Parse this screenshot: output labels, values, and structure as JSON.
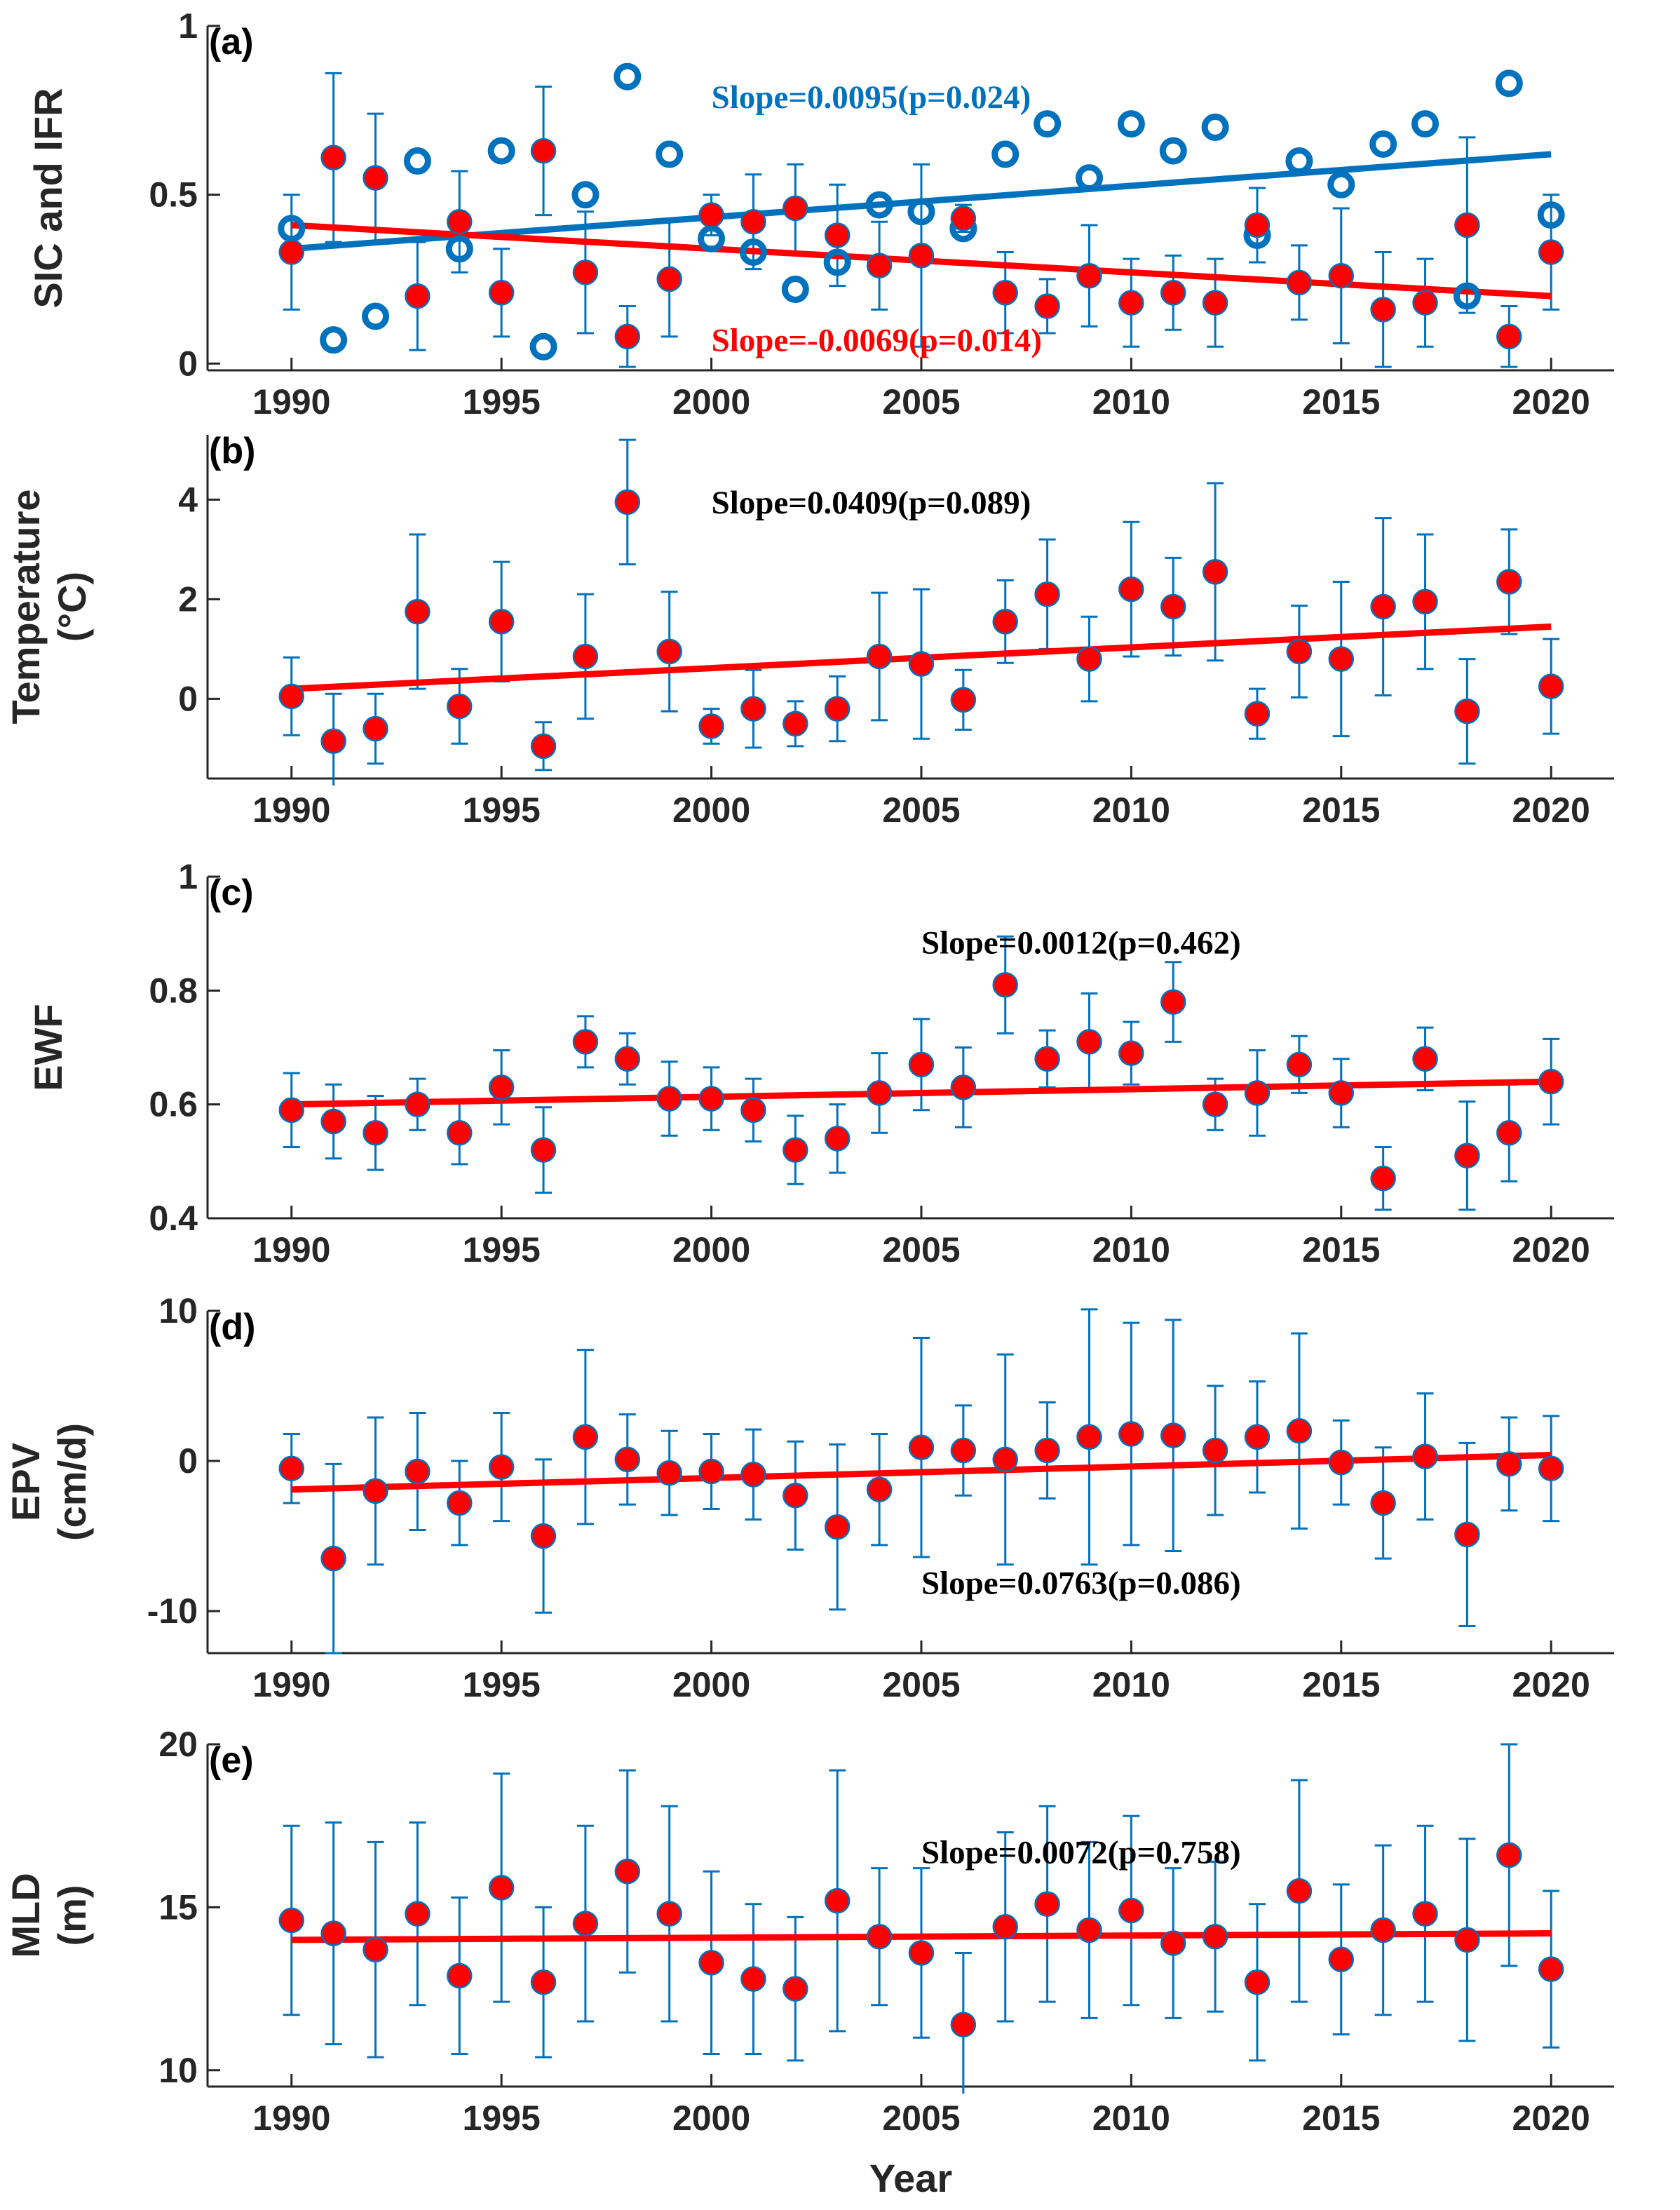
{
  "chart_data": [
    {
      "type": "scatter",
      "panel_label": "(a)",
      "ylabel": [
        "SIC and IFR"
      ],
      "xlabel": "",
      "xlim": [
        1988,
        2021.5
      ],
      "ylim": [
        -0.02,
        1.0
      ],
      "yticks": [
        0,
        0.5,
        1
      ],
      "ytick_labels": [
        "0",
        "0.5",
        "1"
      ],
      "xticks": [
        1990,
        1995,
        2000,
        2005,
        2010,
        2015,
        2020
      ],
      "xtick_labels": [
        "1990",
        "1995",
        "2000",
        "2005",
        "2010",
        "2015",
        "2020"
      ],
      "x": [
        1990,
        1991,
        1992,
        1993,
        1994,
        1995,
        1996,
        1997,
        1998,
        1999,
        2000,
        2001,
        2002,
        2003,
        2004,
        2005,
        2006,
        2007,
        2008,
        2009,
        2010,
        2011,
        2012,
        2013,
        2014,
        2015,
        2016,
        2017,
        2018,
        2019,
        2020
      ],
      "series": [
        {
          "name": "SIC",
          "marker": "open-circle",
          "color": "#0072BD",
          "values": [
            0.4,
            0.07,
            0.14,
            0.6,
            0.34,
            0.63,
            0.05,
            0.5,
            0.85,
            0.62,
            0.37,
            0.33,
            0.22,
            0.3,
            0.47,
            0.45,
            0.4,
            0.62,
            0.71,
            0.55,
            0.71,
            0.63,
            0.7,
            0.38,
            0.6,
            0.53,
            0.65,
            0.71,
            0.2,
            0.83,
            0.44
          ],
          "trend": [
            0.34,
            0.62
          ],
          "trend_color": "#0072BD"
        },
        {
          "name": "IFR",
          "marker": "filled-circle",
          "color": "#FF0000",
          "values": [
            0.33,
            0.61,
            0.55,
            0.2,
            0.42,
            0.21,
            0.63,
            0.27,
            0.08,
            0.25,
            0.44,
            0.42,
            0.46,
            0.38,
            0.29,
            0.32,
            0.43,
            0.21,
            0.17,
            0.26,
            0.18,
            0.21,
            0.18,
            0.41,
            0.24,
            0.26,
            0.16,
            0.18,
            0.41,
            0.08,
            0.33
          ],
          "errors": [
            0.17,
            0.25,
            0.19,
            0.16,
            0.15,
            0.13,
            0.19,
            0.18,
            0.09,
            0.17,
            0.06,
            0.14,
            0.13,
            0.15,
            0.13,
            0.27,
            0.04,
            0.12,
            0.08,
            0.15,
            0.13,
            0.11,
            0.13,
            0.11,
            0.11,
            0.2,
            0.17,
            0.13,
            0.26,
            0.09,
            0.17
          ],
          "error_color": "#0072BD",
          "trend": [
            0.41,
            0.2
          ],
          "trend_color": "#FF0000"
        }
      ],
      "annotations": [
        {
          "text": "Slope=0.0095(p=0.024)",
          "color": "#0072BD",
          "x": 2000,
          "y": 0.79
        },
        {
          "text": "Slope=-0.0069(p=0.014)",
          "color": "#FF0000",
          "x": 2000,
          "y": 0.07
        }
      ]
    },
    {
      "type": "scatter",
      "panel_label": "(b)",
      "ylabel": [
        "Temperature",
        "(°C)"
      ],
      "xlabel": "",
      "xlim": [
        1988,
        2021.5
      ],
      "ylim": [
        -1.6,
        5.3
      ],
      "yticks": [
        0,
        2,
        4
      ],
      "ytick_labels": [
        "0",
        "2",
        "4"
      ],
      "xticks": [
        1990,
        1995,
        2000,
        2005,
        2010,
        2015,
        2020
      ],
      "xtick_labels": [
        "1990",
        "1995",
        "2000",
        "2005",
        "2010",
        "2015",
        "2020"
      ],
      "x": [
        1990,
        1991,
        1992,
        1993,
        1994,
        1995,
        1996,
        1997,
        1998,
        1999,
        2000,
        2001,
        2002,
        2003,
        2004,
        2005,
        2006,
        2007,
        2008,
        2009,
        2010,
        2011,
        2012,
        2013,
        2014,
        2015,
        2016,
        2017,
        2018,
        2019,
        2020
      ],
      "series": [
        {
          "name": "Temperature",
          "marker": "filled-circle",
          "color": "#FF0000",
          "values": [
            0.05,
            -0.85,
            -0.6,
            1.75,
            -0.15,
            1.55,
            -0.95,
            0.85,
            3.95,
            0.95,
            -0.55,
            -0.2,
            -0.5,
            -0.2,
            0.85,
            0.7,
            -0.02,
            1.55,
            2.1,
            0.8,
            2.2,
            1.85,
            2.55,
            -0.3,
            0.95,
            0.8,
            1.85,
            1.95,
            -0.25,
            2.35,
            0.25
          ],
          "errors": [
            0.78,
            0.95,
            0.7,
            1.55,
            0.75,
            1.2,
            0.48,
            1.25,
            1.25,
            1.2,
            0.35,
            0.78,
            0.45,
            0.65,
            1.28,
            1.5,
            0.6,
            0.83,
            1.1,
            0.85,
            1.35,
            0.98,
            1.78,
            0.5,
            0.92,
            1.55,
            1.78,
            1.35,
            1.05,
            1.05,
            0.95
          ],
          "error_color": "#0072BD",
          "trend": [
            0.2,
            1.45
          ],
          "trend_color": "#FF0000"
        }
      ],
      "annotations": [
        {
          "text": "Slope=0.0409(p=0.089)",
          "color": "#000000",
          "x": 2000,
          "y": 3.95
        }
      ]
    },
    {
      "type": "scatter",
      "panel_label": "(c)",
      "ylabel": [
        "EWF"
      ],
      "xlabel": "",
      "xlim": [
        1988,
        2021.5
      ],
      "ylim": [
        0.4,
        1.0
      ],
      "yticks": [
        0.4,
        0.6,
        0.8,
        1
      ],
      "ytick_labels": [
        "0.4",
        "0.6",
        "0.8",
        "1"
      ],
      "xticks": [
        1990,
        1995,
        2000,
        2005,
        2010,
        2015,
        2020
      ],
      "xtick_labels": [
        "1990",
        "1995",
        "2000",
        "2005",
        "2010",
        "2015",
        "2020"
      ],
      "x": [
        1990,
        1991,
        1992,
        1993,
        1994,
        1995,
        1996,
        1997,
        1998,
        1999,
        2000,
        2001,
        2002,
        2003,
        2004,
        2005,
        2006,
        2007,
        2008,
        2009,
        2010,
        2011,
        2012,
        2013,
        2014,
        2015,
        2016,
        2017,
        2018,
        2019,
        2020
      ],
      "series": [
        {
          "name": "EWF",
          "marker": "filled-circle",
          "color": "#FF0000",
          "values": [
            0.59,
            0.57,
            0.55,
            0.6,
            0.55,
            0.63,
            0.52,
            0.71,
            0.68,
            0.61,
            0.61,
            0.59,
            0.52,
            0.54,
            0.62,
            0.67,
            0.63,
            0.81,
            0.68,
            0.71,
            0.69,
            0.78,
            0.6,
            0.62,
            0.67,
            0.62,
            0.47,
            0.68,
            0.51,
            0.55,
            0.64
          ],
          "errors": [
            0.065,
            0.065,
            0.065,
            0.045,
            0.055,
            0.065,
            0.075,
            0.045,
            0.045,
            0.065,
            0.055,
            0.055,
            0.06,
            0.06,
            0.07,
            0.08,
            0.07,
            0.085,
            0.05,
            0.085,
            0.055,
            0.07,
            0.045,
            0.075,
            0.05,
            0.06,
            0.055,
            0.055,
            0.095,
            0.085,
            0.075
          ],
          "error_color": "#0072BD",
          "trend": [
            0.6,
            0.64
          ],
          "trend_color": "#FF0000"
        }
      ],
      "annotations": [
        {
          "text": "Slope=0.0012(p=0.462)",
          "color": "#000000",
          "x": 2005,
          "y": 0.885
        }
      ]
    },
    {
      "type": "scatter",
      "panel_label": "(d)",
      "ylabel": [
        "EPV",
        "(cm/d)"
      ],
      "xlabel": "",
      "xlim": [
        1988,
        2021.5
      ],
      "ylim": [
        -12.8,
        10.0
      ],
      "yticks": [
        -10,
        0,
        10
      ],
      "ytick_labels": [
        "-10",
        "0",
        "10"
      ],
      "xticks": [
        1990,
        1995,
        2000,
        2005,
        2010,
        2015,
        2020
      ],
      "xtick_labels": [
        "1990",
        "1995",
        "2000",
        "2005",
        "2010",
        "2015",
        "2020"
      ],
      "x": [
        1990,
        1991,
        1992,
        1993,
        1994,
        1995,
        1996,
        1997,
        1998,
        1999,
        2000,
        2001,
        2002,
        2003,
        2004,
        2005,
        2006,
        2007,
        2008,
        2009,
        2010,
        2011,
        2012,
        2013,
        2014,
        2015,
        2016,
        2017,
        2018,
        2019,
        2020
      ],
      "series": [
        {
          "name": "EPV",
          "marker": "filled-circle",
          "color": "#FF0000",
          "values": [
            -0.5,
            -6.5,
            -2.0,
            -0.7,
            -2.8,
            -0.4,
            -5.0,
            1.6,
            0.1,
            -0.8,
            -0.7,
            -0.9,
            -2.3,
            -4.4,
            -1.9,
            0.9,
            0.7,
            0.1,
            0.7,
            1.6,
            1.8,
            1.7,
            0.7,
            1.6,
            2.0,
            -0.1,
            -2.8,
            0.3,
            -4.9,
            -0.2,
            -0.5
          ],
          "errors": [
            2.3,
            6.3,
            4.9,
            3.9,
            2.8,
            3.6,
            5.1,
            5.8,
            3.0,
            2.8,
            2.5,
            3.0,
            3.6,
            5.5,
            3.7,
            7.3,
            3.0,
            7.0,
            3.2,
            8.5,
            7.4,
            7.7,
            4.3,
            3.7,
            6.5,
            2.8,
            3.7,
            4.2,
            6.1,
            3.1,
            3.5
          ],
          "error_color": "#0072BD",
          "trend": [
            -1.9,
            0.4
          ],
          "trend_color": "#FF0000"
        }
      ],
      "annotations": [
        {
          "text": "Slope=0.0763(p=0.086)",
          "color": "#000000",
          "x": 2005,
          "y": -8.1
        }
      ]
    },
    {
      "type": "scatter",
      "panel_label": "(e)",
      "ylabel": [
        "MLD",
        "(m)"
      ],
      "xlabel": "Year",
      "xlim": [
        1988,
        2021.5
      ],
      "ylim": [
        9.5,
        20.0
      ],
      "yticks": [
        10,
        15,
        20
      ],
      "ytick_labels": [
        "10",
        "15",
        "20"
      ],
      "xticks": [
        1990,
        1995,
        2000,
        2005,
        2010,
        2015,
        2020
      ],
      "xtick_labels": [
        "1990",
        "1995",
        "2000",
        "2005",
        "2010",
        "2015",
        "2020"
      ],
      "x": [
        1990,
        1991,
        1992,
        1993,
        1994,
        1995,
        1996,
        1997,
        1998,
        1999,
        2000,
        2001,
        2002,
        2003,
        2004,
        2005,
        2006,
        2007,
        2008,
        2009,
        2010,
        2011,
        2012,
        2013,
        2014,
        2015,
        2016,
        2017,
        2018,
        2019,
        2020
      ],
      "series": [
        {
          "name": "MLD",
          "marker": "filled-circle",
          "color": "#FF0000",
          "values": [
            14.6,
            14.2,
            13.7,
            14.8,
            12.9,
            15.6,
            12.7,
            14.5,
            16.1,
            14.8,
            13.3,
            12.8,
            12.5,
            15.2,
            14.1,
            13.6,
            11.4,
            14.4,
            15.1,
            14.3,
            14.9,
            13.9,
            14.1,
            12.7,
            15.5,
            13.4,
            14.3,
            14.8,
            14.0,
            16.6,
            13.1
          ],
          "errors": [
            2.9,
            3.4,
            3.3,
            2.8,
            2.4,
            3.5,
            2.3,
            3.0,
            3.1,
            3.3,
            2.8,
            2.3,
            2.2,
            4.0,
            2.1,
            2.6,
            2.2,
            2.9,
            3.0,
            2.7,
            2.9,
            2.3,
            2.3,
            2.4,
            3.4,
            2.3,
            2.6,
            2.7,
            3.1,
            3.4,
            2.4
          ],
          "error_color": "#0072BD",
          "trend": [
            14.0,
            14.2
          ],
          "trend_color": "#FF0000"
        }
      ],
      "annotations": [
        {
          "text": "Slope=0.0072(p=0.758)",
          "color": "#000000",
          "x": 2005,
          "y": 16.7
        }
      ]
    }
  ]
}
